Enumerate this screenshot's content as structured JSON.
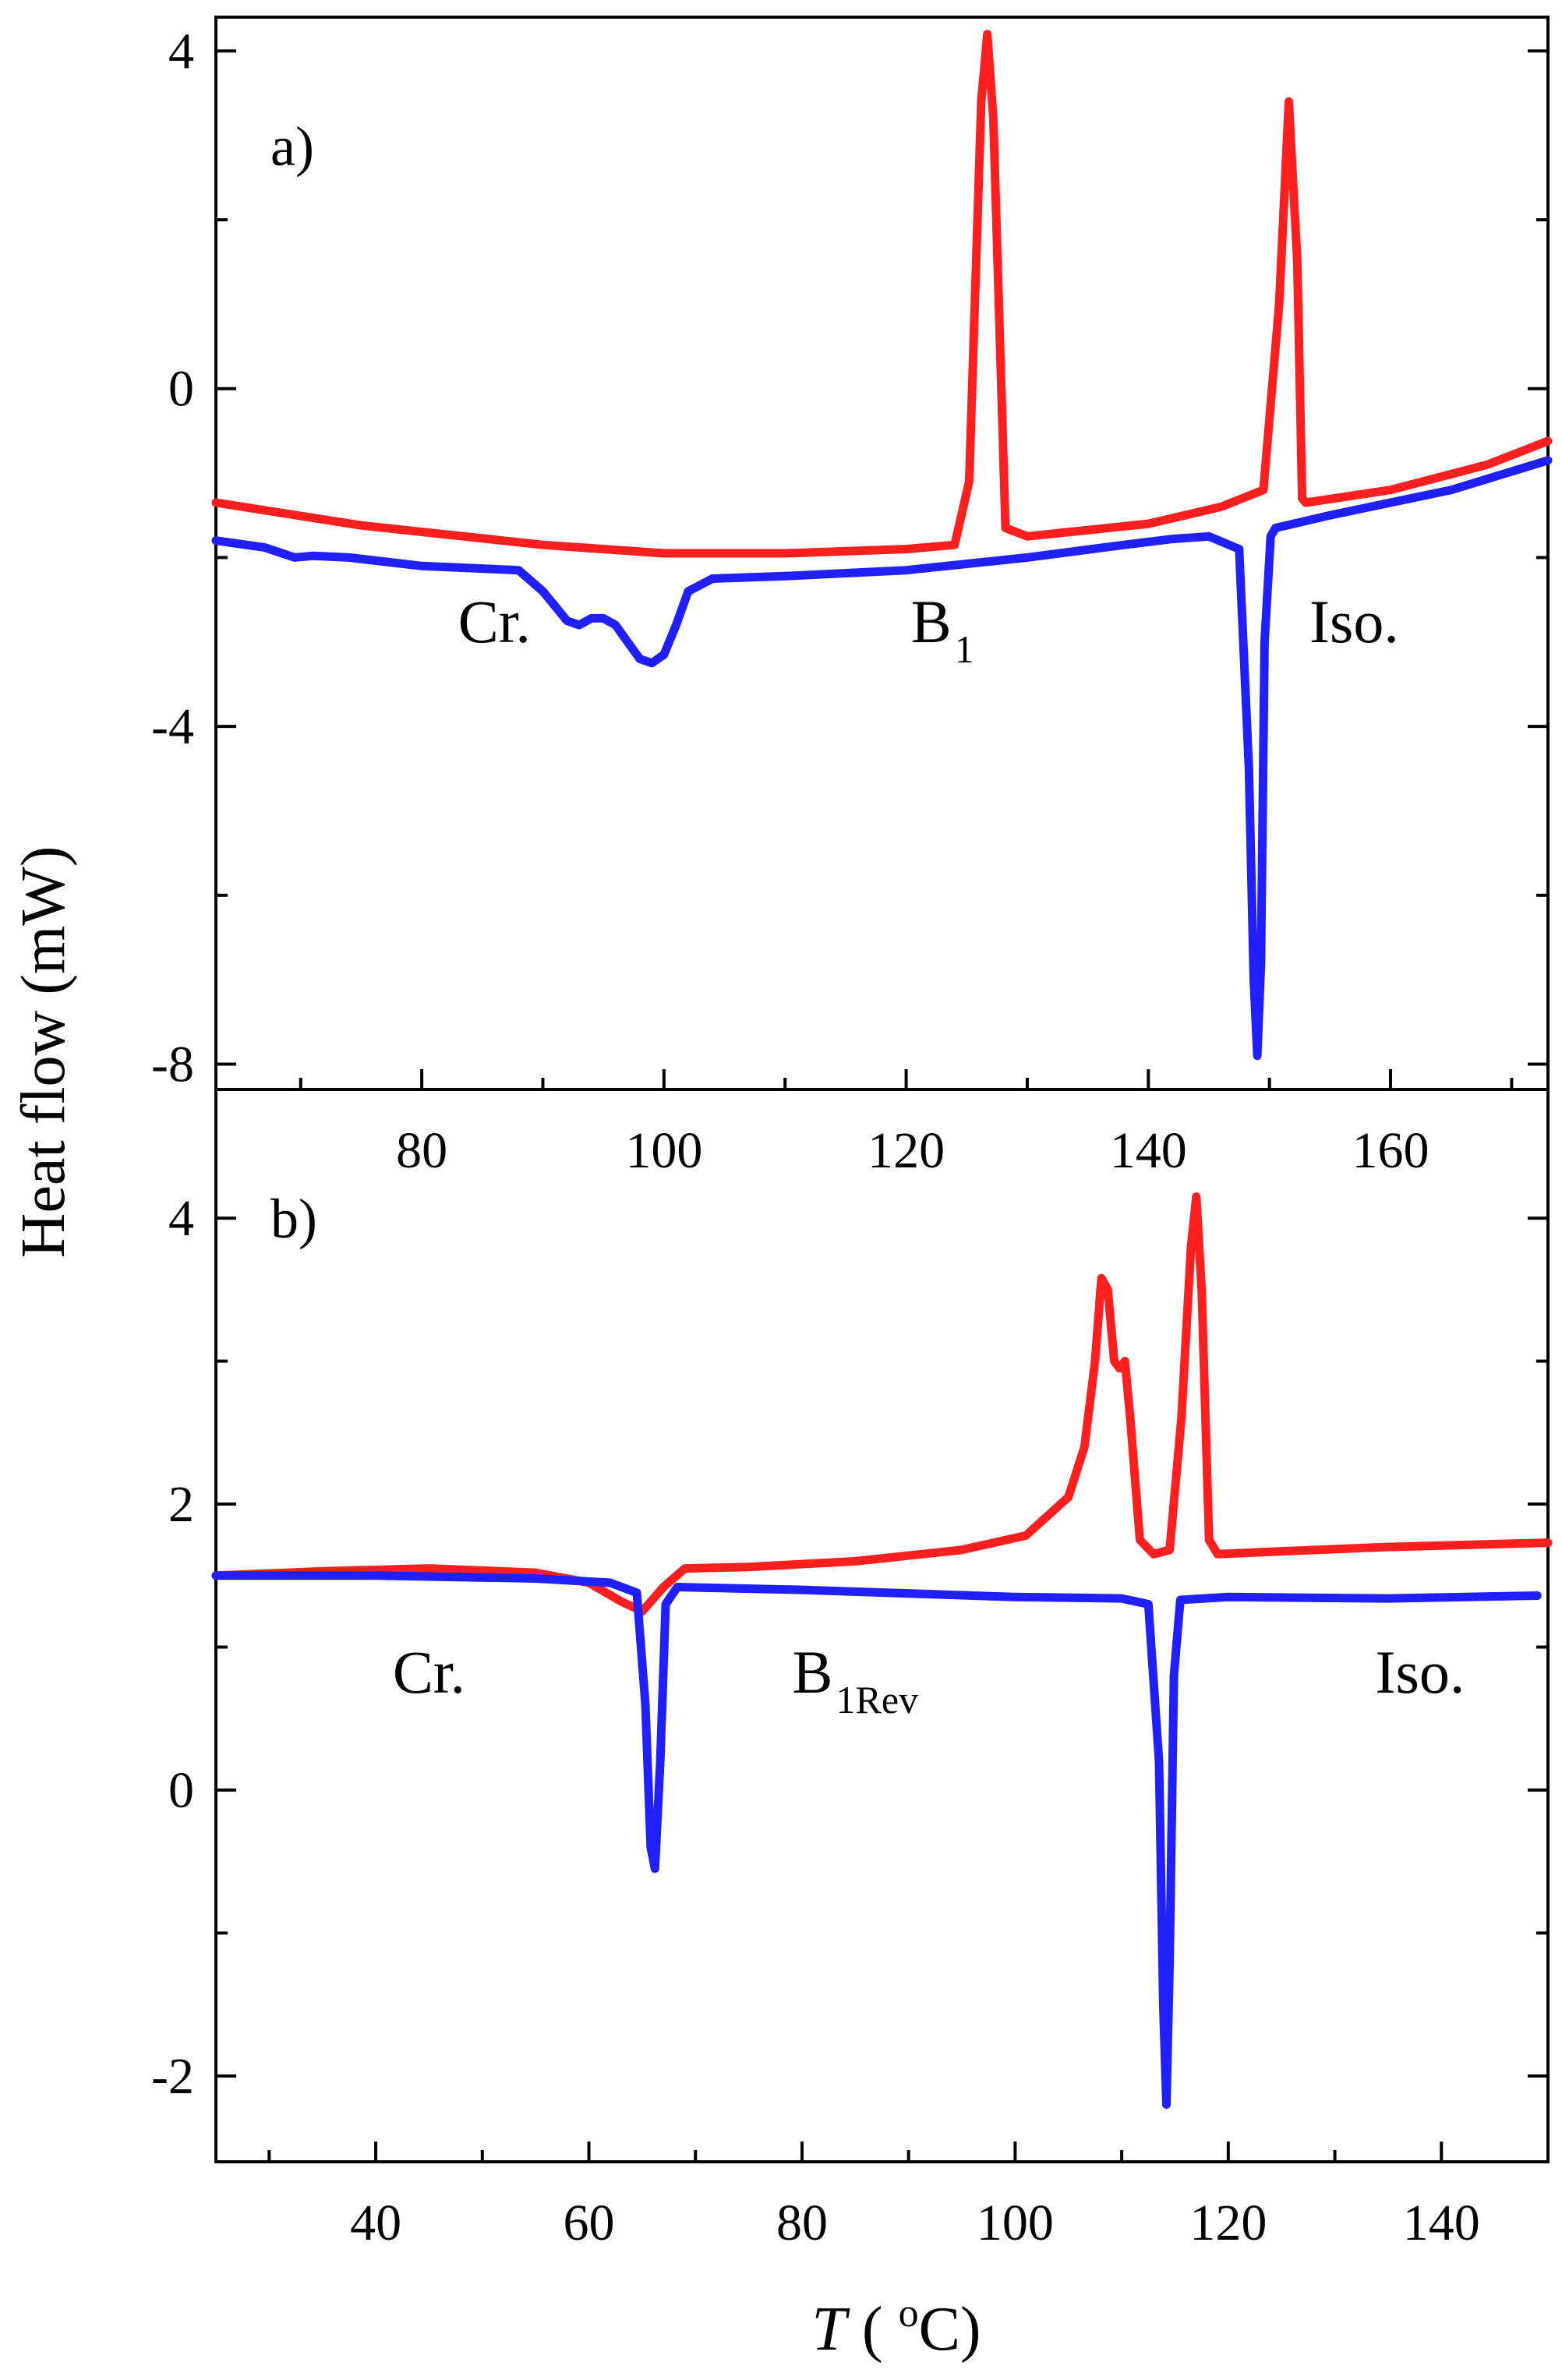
{
  "y_axis_title": "Heat flow  (mW)",
  "x_axis_title": {
    "var": "T",
    "open": " ( ",
    "degree": "o",
    "unit": "C)"
  },
  "colors": {
    "heating": "#ff1f1f",
    "cooling": "#1f1fff",
    "axis": "#000000"
  },
  "chart_data": [
    {
      "type": "line",
      "panel": "a)",
      "xlim": [
        63,
        173
      ],
      "ylim": [
        -8.3,
        4.4
      ],
      "x_ticks": [
        80,
        100,
        120,
        140,
        160
      ],
      "x_minor_step": 10,
      "y_ticks": [
        -8,
        -4,
        0,
        4
      ],
      "y_minor_step": 2,
      "phase_labels": [
        {
          "main": "Cr.",
          "sub": "",
          "x": 86,
          "y": -3.0
        },
        {
          "main": "B",
          "sub": "1",
          "x": 123,
          "y": -3.0
        },
        {
          "main": "Iso.",
          "sub": "",
          "x": 157,
          "y": -3.0
        }
      ],
      "series": [
        {
          "name": "heating",
          "color": "#ff1f1f",
          "x": [
            63,
            75,
            90,
            100,
            110,
            120,
            124,
            125.2,
            126.2,
            126.7,
            127.2,
            128.2,
            130,
            140,
            146,
            149.5,
            150.8,
            151.6,
            152.3,
            152.7,
            153,
            160,
            168,
            173
          ],
          "y": [
            -1.35,
            -1.62,
            -1.85,
            -1.95,
            -1.95,
            -1.9,
            -1.85,
            -1.1,
            3.4,
            4.2,
            3.2,
            -1.65,
            -1.75,
            -1.6,
            -1.4,
            -1.2,
            1.0,
            3.4,
            1.5,
            -1.3,
            -1.35,
            -1.2,
            -0.9,
            -0.62
          ]
        },
        {
          "name": "cooling",
          "color": "#1f1fff",
          "x": [
            63,
            67,
            69.5,
            71,
            74,
            80,
            88,
            90,
            92,
            93,
            94,
            95,
            96,
            97,
            98,
            99,
            100,
            101,
            102,
            104,
            110,
            120,
            130,
            138,
            142,
            145,
            147.5,
            148.3,
            148.7,
            149,
            149.3,
            149.6,
            150.1,
            150.5,
            155,
            165,
            173
          ],
          "y": [
            -1.8,
            -1.88,
            -2.0,
            -1.98,
            -2.0,
            -2.1,
            -2.15,
            -2.4,
            -2.75,
            -2.8,
            -2.72,
            -2.72,
            -2.8,
            -3.0,
            -3.2,
            -3.25,
            -3.15,
            -2.8,
            -2.4,
            -2.25,
            -2.22,
            -2.15,
            -2.0,
            -1.85,
            -1.78,
            -1.75,
            -1.9,
            -4.5,
            -7.0,
            -7.9,
            -6.8,
            -3.0,
            -1.75,
            -1.65,
            -1.5,
            -1.2,
            -0.85
          ]
        }
      ]
    },
    {
      "type": "line",
      "panel": "b)",
      "xlim": [
        25,
        150
      ],
      "ylim": [
        -2.6,
        4.9
      ],
      "x_ticks": [
        40,
        60,
        80,
        100,
        120,
        140
      ],
      "x_minor_step": 10,
      "y_ticks": [
        -2,
        0,
        2,
        4
      ],
      "y_minor_step": 1,
      "phase_labels": [
        {
          "main": "Cr.",
          "sub": "",
          "x": 45,
          "y": 0.68
        },
        {
          "main": "B",
          "sub": "1Rev",
          "x": 85,
          "y": 0.68
        },
        {
          "main": "Iso.",
          "sub": "",
          "x": 138,
          "y": 0.68
        }
      ],
      "series": [
        {
          "name": "heating",
          "color": "#ff1f1f",
          "x": [
            25,
            35,
            45,
            55,
            60,
            63,
            65,
            67,
            69,
            75,
            85,
            95,
            101,
            105,
            106.5,
            107.5,
            108.1,
            108.7,
            109.3,
            109.8,
            110.3,
            110.8,
            111.7,
            113,
            114.5,
            115.6,
            116.5,
            117,
            117.5,
            118.2,
            119,
            125,
            135,
            150
          ],
          "y": [
            1.5,
            1.53,
            1.55,
            1.52,
            1.45,
            1.32,
            1.25,
            1.42,
            1.55,
            1.56,
            1.6,
            1.68,
            1.78,
            2.05,
            2.4,
            3.0,
            3.58,
            3.5,
            3.0,
            2.95,
            3.0,
            2.6,
            1.75,
            1.65,
            1.68,
            2.6,
            3.8,
            4.15,
            3.5,
            1.75,
            1.65,
            1.67,
            1.7,
            1.73
          ]
        },
        {
          "name": "cooling",
          "color": "#1f1fff",
          "x": [
            25,
            40,
            55,
            62,
            64.5,
            65.3,
            65.8,
            66.2,
            66.7,
            67.2,
            68.3,
            80,
            100,
            110,
            112.5,
            113.5,
            113.9,
            114.2,
            114.5,
            114.9,
            115.5,
            120,
            135,
            149
          ],
          "y": [
            1.5,
            1.5,
            1.48,
            1.45,
            1.38,
            0.6,
            -0.4,
            -0.55,
            0.2,
            1.3,
            1.42,
            1.4,
            1.35,
            1.34,
            1.3,
            0.2,
            -1.5,
            -2.2,
            -1.2,
            0.8,
            1.33,
            1.35,
            1.34,
            1.36
          ]
        }
      ]
    }
  ]
}
